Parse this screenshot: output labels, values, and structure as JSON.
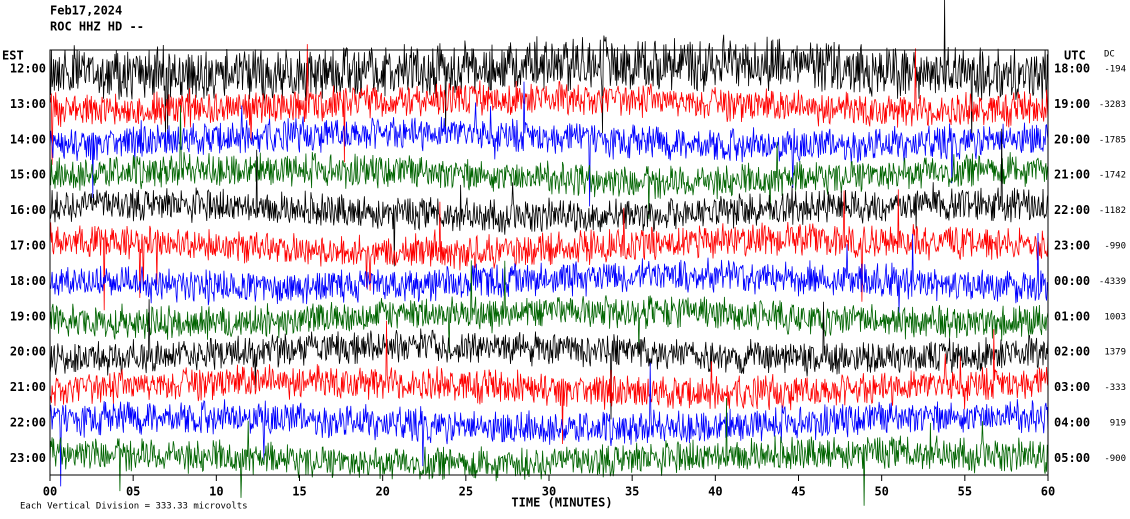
{
  "header": {
    "date": "Feb17,2024",
    "station": "ROC HHZ HD --"
  },
  "chart_data": {
    "type": "helicorder",
    "left_axis_label": "EST",
    "right_axis_label": "UTC",
    "dc_label": "DC",
    "xlabel": "TIME (MINUTES)",
    "scale_note": "Each Vertical Division =  333.33 microvolts",
    "xlim": [
      0,
      60
    ],
    "xticks": [
      {
        "value": 0,
        "label": "00"
      },
      {
        "value": 5,
        "label": "05"
      },
      10,
      15,
      20,
      25,
      30,
      35,
      40,
      45,
      50,
      55,
      60
    ],
    "rows": [
      {
        "est": "12:00",
        "utc": "18:00",
        "dc": -194,
        "color": "#000000"
      },
      {
        "est": "13:00",
        "utc": "19:00",
        "dc": -3283,
        "color": "#ff0000"
      },
      {
        "est": "14:00",
        "utc": "20:00",
        "dc": -1785,
        "color": "#0000ff"
      },
      {
        "est": "15:00",
        "utc": "21:00",
        "dc": -1742,
        "color": "#006400"
      },
      {
        "est": "16:00",
        "utc": "22:00",
        "dc": -1182,
        "color": "#000000"
      },
      {
        "est": "17:00",
        "utc": "23:00",
        "dc": -990,
        "color": "#ff0000"
      },
      {
        "est": "18:00",
        "utc": "00:00",
        "dc": -4339,
        "color": "#0000ff"
      },
      {
        "est": "19:00",
        "utc": "01:00",
        "dc": 1003,
        "color": "#006400"
      },
      {
        "est": "20:00",
        "utc": "02:00",
        "dc": 1379,
        "color": "#000000"
      },
      {
        "est": "21:00",
        "utc": "03:00",
        "dc": -333,
        "color": "#ff0000"
      },
      {
        "est": "22:00",
        "utc": "04:00",
        "dc": 919,
        "color": "#0000ff"
      },
      {
        "est": "23:00",
        "utc": "05:00",
        "dc": -900,
        "color": "#006400"
      }
    ]
  }
}
